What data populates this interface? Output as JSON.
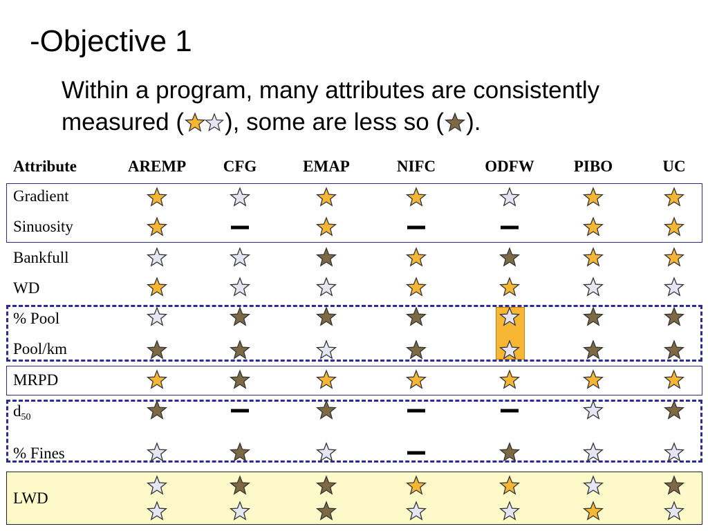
{
  "title": "-Objective 1",
  "subtitle": {
    "line1": "Within a program, many attributes are consistently",
    "line2_a": "measured (",
    "line2_b": "), some are less so (",
    "line2_c": ")."
  },
  "colors": {
    "gold": "#f7b734",
    "silver": "#e4e6f4",
    "dark": "#7d6a44",
    "box_border": "#2a2a8a",
    "lwd_fill": "#fdf9c8"
  },
  "legend_icons": [
    "gold-star-icon",
    "silver-star-icon",
    "dark-star-icon",
    "dash-icon"
  ],
  "table": {
    "header_label": "Attribute",
    "columns": [
      "AREMP",
      "CFG",
      "EMAP",
      "NIFC",
      "ODFW",
      "PIBO",
      "UC"
    ],
    "rows": [
      {
        "label": "Gradient",
        "cells": [
          [
            "gold"
          ],
          [
            "silver"
          ],
          [
            "gold"
          ],
          [
            "gold"
          ],
          [
            "silver"
          ],
          [
            "gold"
          ],
          [
            "gold"
          ]
        ]
      },
      {
        "label": "Sinuosity",
        "cells": [
          [
            "gold"
          ],
          [
            "dash"
          ],
          [
            "gold"
          ],
          [
            "dash"
          ],
          [
            "dash"
          ],
          [
            "gold"
          ],
          [
            "gold"
          ]
        ]
      },
      {
        "label": "Bankfull",
        "cells": [
          [
            "silver"
          ],
          [
            "silver"
          ],
          [
            "dark"
          ],
          [
            "gold"
          ],
          [
            "dark"
          ],
          [
            "gold"
          ],
          [
            "gold"
          ]
        ]
      },
      {
        "label": "WD",
        "cells": [
          [
            "gold"
          ],
          [
            "silver"
          ],
          [
            "silver"
          ],
          [
            "gold"
          ],
          [
            "gold"
          ],
          [
            "silver"
          ],
          [
            "silver"
          ]
        ]
      },
      {
        "label": "% Pool",
        "cells": [
          [
            "silver"
          ],
          [
            "dark"
          ],
          [
            "dark"
          ],
          [
            "dark"
          ],
          [
            "silver"
          ],
          [
            "dark"
          ],
          [
            "dark"
          ]
        ]
      },
      {
        "label": "Pool/km",
        "cells": [
          [
            "dark"
          ],
          [
            "dark"
          ],
          [
            "silver"
          ],
          [
            "dark"
          ],
          [
            "silver"
          ],
          [
            "dark"
          ],
          [
            "dark"
          ]
        ]
      },
      {
        "label": "MRPD",
        "cells": [
          [
            "gold"
          ],
          [
            "dark"
          ],
          [
            "gold"
          ],
          [
            "gold"
          ],
          [
            "gold"
          ],
          [
            "gold"
          ],
          [
            "gold"
          ]
        ]
      },
      {
        "label": "d",
        "label_sub": "50",
        "cells": [
          [
            "dark"
          ],
          [
            "dash"
          ],
          [
            "dark"
          ],
          [
            "dash"
          ],
          [
            "dash"
          ],
          [
            "silver"
          ],
          [
            "dark"
          ]
        ]
      },
      {
        "label": "% Fines",
        "cells": [
          [
            "silver"
          ],
          [
            "dark"
          ],
          [
            "silver"
          ],
          [
            "dash"
          ],
          [
            "dark"
          ],
          [
            "silver"
          ],
          [
            "silver"
          ]
        ]
      },
      {
        "label": "LWD",
        "cells": [
          [
            "silver",
            "silver"
          ],
          [
            "dark",
            "silver"
          ],
          [
            "dark",
            "dark"
          ],
          [
            "gold",
            "silver"
          ],
          [
            "gold",
            "silver"
          ],
          [
            "silver",
            "gold"
          ],
          [
            "dark",
            "silver"
          ]
        ]
      }
    ]
  }
}
